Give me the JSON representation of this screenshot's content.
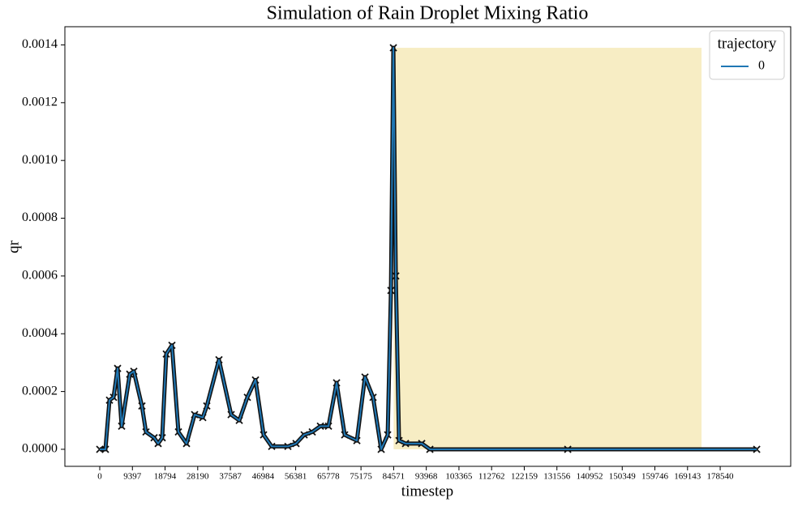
{
  "chart_data": {
    "type": "line",
    "title": "Simulation of Rain Droplet Mixing Ratio",
    "x_label": "timestep",
    "y_label": "qr",
    "legend_title": "trajectory",
    "legend_loc": "upper right",
    "x": [
      0,
      1634,
      2800,
      3968,
      5135,
      6302,
      8636,
      9803,
      12137,
      13304,
      15638,
      16805,
      17972,
      19139,
      20773,
      22640,
      24974,
      27308,
      29642,
      30809,
      34310,
      37811,
      40145,
      42479,
      44813,
      47147,
      49481,
      54149,
      56483,
      58817,
      61151,
      63485,
      65819,
      68153,
      70487,
      73988,
      76322,
      78656,
      80990,
      82857,
      83791,
      84491,
      85191,
      86125,
      87992,
      92660,
      94994,
      134672,
      189054
    ],
    "series": [
      {
        "name": "0",
        "color": "#1f77b4",
        "marker_color": "#111111",
        "values": [
          0,
          0,
          0.00017,
          0.00018,
          0.00028,
          8e-05,
          0.00026,
          0.00027,
          0.00015,
          6e-05,
          4e-05,
          2e-05,
          4e-05,
          0.00033,
          0.00036,
          6e-05,
          2e-05,
          0.00012,
          0.00011,
          0.00015,
          0.00031,
          0.00012,
          0.0001,
          0.00018,
          0.00024,
          5e-05,
          1e-05,
          1e-05,
          2e-05,
          5e-05,
          6e-05,
          8e-05,
          8e-05,
          0.00023,
          5e-05,
          3e-05,
          0.00025,
          0.00018,
          0,
          5e-05,
          0.00055,
          0.00139,
          0.0006,
          3e-05,
          2e-05,
          2e-05,
          0,
          0,
          0
        ]
      }
    ],
    "highlight": {
      "x": [
        84571,
        173170
      ],
      "y": [
        0,
        0.00139
      ],
      "color": "#f7edc4"
    },
    "xlim": [
      -10035,
      198830
    ],
    "ylim": [
      -5.9e-05,
      0.001463
    ],
    "xticks": [
      0,
      9397,
      18794,
      28190,
      37587,
      46984,
      56381,
      65778,
      75175,
      84571,
      93968,
      103365,
      112762,
      122159,
      131556,
      140952,
      150349,
      159746,
      169143,
      178540
    ],
    "yticks": [
      {
        "value": 0,
        "label": "0.0000"
      },
      0.0002,
      0.0004,
      0.0006,
      0.0008,
      {
        "value": 0.001,
        "label": "0.0010"
      },
      0.0012,
      0.0014
    ],
    "grid": false
  }
}
